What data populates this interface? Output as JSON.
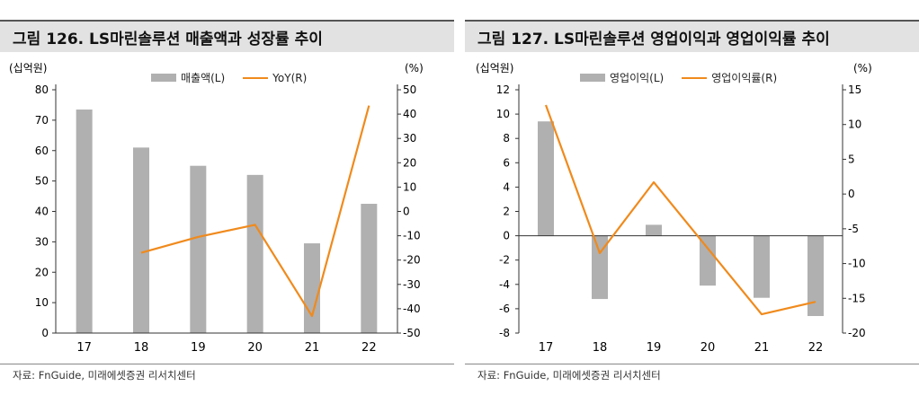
{
  "charts": [
    {
      "title": "그림 126. LS마린솔루션 매출액과 성장률 추이",
      "source": "자료: FnGuide, 미래에셋증권 리서치센터",
      "left_unit": "(십억원)",
      "right_unit": "(%)",
      "legend_bar": "매출액(L)",
      "legend_line": "YoY(R)"
    },
    {
      "title": "그림 127. LS마린솔루션 영업이익과 영업이익률 추이",
      "source": "자료: FnGuide, 미래에셋증권 리서치센터",
      "left_unit": "(십억원)",
      "right_unit": "(%)",
      "legend_bar": "영업이익(L)",
      "legend_line": "영업이익률(R)"
    }
  ],
  "chart_data": [
    {
      "type": "bar+line",
      "categories": [
        "17",
        "18",
        "19",
        "20",
        "21",
        "22"
      ],
      "series": [
        {
          "name": "매출액(L)",
          "axis": "left",
          "kind": "bar",
          "values": [
            73.5,
            61,
            55,
            52,
            29.5,
            42.5
          ]
        },
        {
          "name": "YoY(R)",
          "axis": "right",
          "kind": "line",
          "values": [
            null,
            -17,
            -10.5,
            -5.5,
            -43,
            43.5
          ]
        }
      ],
      "ylim_left": [
        0,
        80
      ],
      "yticks_left": [
        0,
        10,
        20,
        30,
        40,
        50,
        60,
        70,
        80
      ],
      "ylim_right": [
        -50,
        50
      ],
      "yticks_right": [
        -50,
        -40,
        -30,
        -20,
        -10,
        0,
        10,
        20,
        30,
        40,
        50
      ],
      "colors": {
        "bar": "#b0b0b0",
        "line": "#f08a1c"
      }
    },
    {
      "type": "bar+line",
      "categories": [
        "17",
        "18",
        "19",
        "20",
        "21",
        "22"
      ],
      "series": [
        {
          "name": "영업이익(L)",
          "axis": "left",
          "kind": "bar",
          "values": [
            9.4,
            -5.2,
            0.9,
            -4.1,
            -5.1,
            -6.6
          ]
        },
        {
          "name": "영업이익률(R)",
          "axis": "right",
          "kind": "line",
          "values": [
            12.8,
            -8.5,
            1.7,
            -7.8,
            -17.3,
            -15.5
          ]
        }
      ],
      "ylim_left": [
        -8,
        12
      ],
      "yticks_left": [
        -8,
        -6,
        -4,
        -2,
        0,
        2,
        4,
        6,
        8,
        10,
        12
      ],
      "ylim_right": [
        -20,
        15
      ],
      "yticks_right": [
        -20,
        -15,
        -10,
        -5,
        0,
        5,
        10,
        15
      ],
      "colors": {
        "bar": "#b0b0b0",
        "line": "#f08a1c"
      }
    }
  ]
}
